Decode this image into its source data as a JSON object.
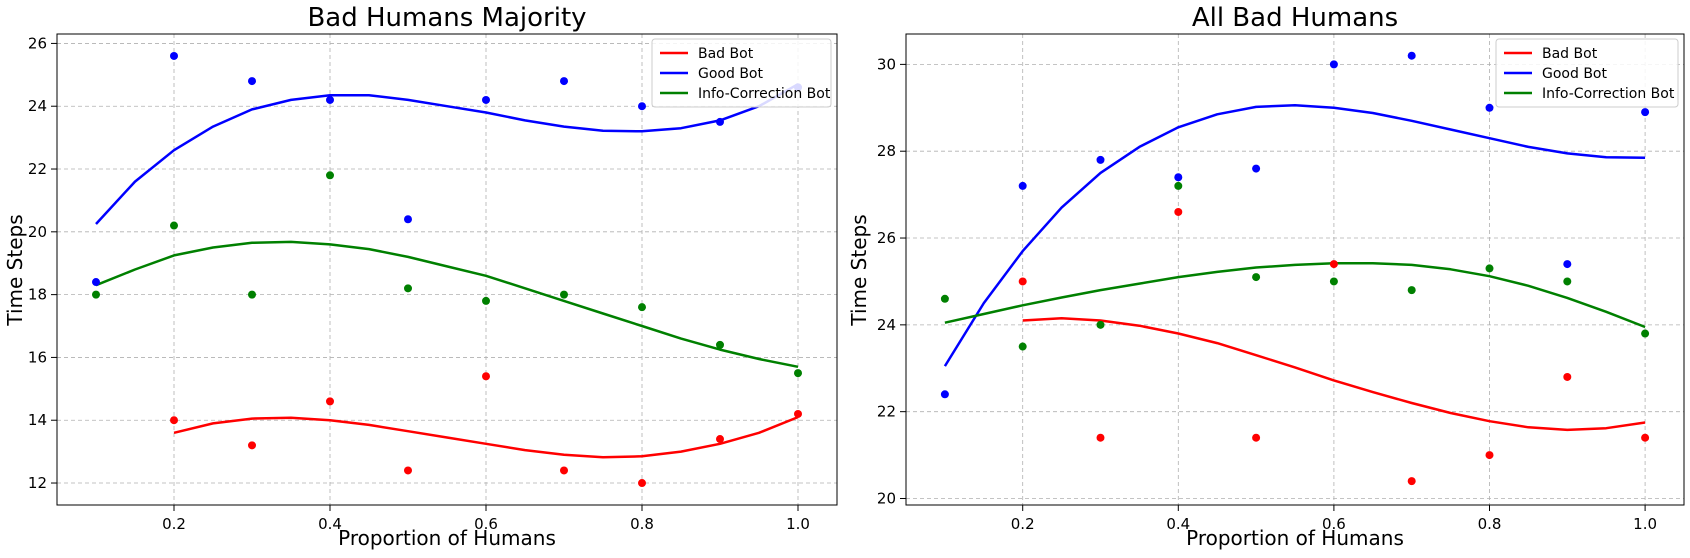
{
  "chart_data": [
    {
      "type": "scatter",
      "title": "Bad Humans Majority",
      "xlabel": "Proportion of Humans",
      "ylabel": "Time Steps",
      "xlim": [
        0.05,
        1.05
      ],
      "ylim": [
        11.3,
        26.3
      ],
      "xticks": [
        0.2,
        0.4,
        0.6,
        0.8,
        1.0
      ],
      "xtick_labels": [
        "0.2",
        "0.4",
        "0.6",
        "0.8",
        "1.0"
      ],
      "yticks": [
        12,
        14,
        16,
        18,
        20,
        22,
        24,
        26
      ],
      "ytick_labels": [
        "12",
        "14",
        "16",
        "18",
        "20",
        "22",
        "24",
        "26"
      ],
      "grid": true,
      "legend_position": "top-right",
      "series": [
        {
          "name": "Bad Bot",
          "color": "#ff0000",
          "points": [
            [
              0.2,
              14.0
            ],
            [
              0.3,
              13.2
            ],
            [
              0.4,
              14.6
            ],
            [
              0.5,
              12.4
            ],
            [
              0.6,
              15.4
            ],
            [
              0.7,
              12.4
            ],
            [
              0.8,
              12.0
            ],
            [
              0.9,
              13.4
            ],
            [
              1.0,
              14.2
            ]
          ],
          "curve": [
            [
              0.2,
              13.6
            ],
            [
              0.25,
              13.9
            ],
            [
              0.3,
              14.05
            ],
            [
              0.35,
              14.08
            ],
            [
              0.4,
              14.0
            ],
            [
              0.45,
              13.85
            ],
            [
              0.5,
              13.65
            ],
            [
              0.55,
              13.45
            ],
            [
              0.6,
              13.25
            ],
            [
              0.65,
              13.05
            ],
            [
              0.7,
              12.9
            ],
            [
              0.75,
              12.82
            ],
            [
              0.8,
              12.85
            ],
            [
              0.85,
              13.0
            ],
            [
              0.9,
              13.25
            ],
            [
              0.95,
              13.6
            ],
            [
              1.0,
              14.1
            ]
          ]
        },
        {
          "name": "Good Bot",
          "color": "#0000ff",
          "points": [
            [
              0.1,
              18.4
            ],
            [
              0.2,
              25.6
            ],
            [
              0.3,
              24.8
            ],
            [
              0.4,
              24.2
            ],
            [
              0.5,
              20.4
            ],
            [
              0.6,
              24.2
            ],
            [
              0.7,
              24.8
            ],
            [
              0.8,
              24.0
            ],
            [
              0.9,
              23.5
            ],
            [
              1.0,
              24.6
            ]
          ],
          "curve": [
            [
              0.1,
              20.25
            ],
            [
              0.15,
              21.6
            ],
            [
              0.2,
              22.6
            ],
            [
              0.25,
              23.35
            ],
            [
              0.3,
              23.9
            ],
            [
              0.35,
              24.2
            ],
            [
              0.4,
              24.35
            ],
            [
              0.45,
              24.35
            ],
            [
              0.5,
              24.2
            ],
            [
              0.55,
              24.0
            ],
            [
              0.6,
              23.8
            ],
            [
              0.65,
              23.55
            ],
            [
              0.7,
              23.35
            ],
            [
              0.75,
              23.22
            ],
            [
              0.8,
              23.2
            ],
            [
              0.85,
              23.3
            ],
            [
              0.9,
              23.55
            ],
            [
              0.95,
              24.0
            ],
            [
              1.0,
              24.7
            ]
          ]
        },
        {
          "name": "Info-Correction Bot",
          "color": "#008000",
          "points": [
            [
              0.1,
              18.0
            ],
            [
              0.2,
              20.2
            ],
            [
              0.3,
              18.0
            ],
            [
              0.4,
              21.8
            ],
            [
              0.5,
              18.2
            ],
            [
              0.6,
              17.8
            ],
            [
              0.7,
              18.0
            ],
            [
              0.8,
              17.6
            ],
            [
              0.9,
              16.4
            ],
            [
              1.0,
              15.5
            ]
          ],
          "curve": [
            [
              0.1,
              18.3
            ],
            [
              0.15,
              18.8
            ],
            [
              0.2,
              19.25
            ],
            [
              0.25,
              19.5
            ],
            [
              0.3,
              19.65
            ],
            [
              0.35,
              19.68
            ],
            [
              0.4,
              19.6
            ],
            [
              0.45,
              19.45
            ],
            [
              0.5,
              19.2
            ],
            [
              0.55,
              18.9
            ],
            [
              0.6,
              18.6
            ],
            [
              0.65,
              18.2
            ],
            [
              0.7,
              17.8
            ],
            [
              0.75,
              17.4
            ],
            [
              0.8,
              17.0
            ],
            [
              0.85,
              16.6
            ],
            [
              0.9,
              16.25
            ],
            [
              0.95,
              15.95
            ],
            [
              1.0,
              15.7
            ]
          ]
        }
      ]
    },
    {
      "type": "scatter",
      "title": "All Bad Humans",
      "xlabel": "Proportion of Humans",
      "ylabel": "Time Steps",
      "xlim": [
        0.05,
        1.05
      ],
      "ylim": [
        19.85,
        30.7
      ],
      "xticks": [
        0.2,
        0.4,
        0.6,
        0.8,
        1.0
      ],
      "xtick_labels": [
        "0.2",
        "0.4",
        "0.6",
        "0.8",
        "1.0"
      ],
      "yticks": [
        20,
        22,
        24,
        26,
        28,
        30
      ],
      "ytick_labels": [
        "20",
        "22",
        "24",
        "26",
        "28",
        "30"
      ],
      "grid": true,
      "legend_position": "top-right",
      "series": [
        {
          "name": "Bad Bot",
          "color": "#ff0000",
          "points": [
            [
              0.2,
              25.0
            ],
            [
              0.3,
              21.4
            ],
            [
              0.4,
              26.6
            ],
            [
              0.5,
              21.4
            ],
            [
              0.6,
              25.4
            ],
            [
              0.7,
              20.4
            ],
            [
              0.8,
              21.0
            ],
            [
              0.9,
              22.8
            ],
            [
              1.0,
              21.4
            ]
          ],
          "curve": [
            [
              0.2,
              24.1
            ],
            [
              0.25,
              24.15
            ],
            [
              0.3,
              24.1
            ],
            [
              0.35,
              23.98
            ],
            [
              0.4,
              23.8
            ],
            [
              0.45,
              23.58
            ],
            [
              0.5,
              23.3
            ],
            [
              0.55,
              23.02
            ],
            [
              0.6,
              22.72
            ],
            [
              0.65,
              22.45
            ],
            [
              0.7,
              22.2
            ],
            [
              0.75,
              21.97
            ],
            [
              0.8,
              21.78
            ],
            [
              0.85,
              21.64
            ],
            [
              0.9,
              21.58
            ],
            [
              0.95,
              21.62
            ],
            [
              1.0,
              21.75
            ]
          ]
        },
        {
          "name": "Good Bot",
          "color": "#0000ff",
          "points": [
            [
              0.1,
              22.4
            ],
            [
              0.2,
              27.2
            ],
            [
              0.3,
              27.8
            ],
            [
              0.4,
              27.4
            ],
            [
              0.5,
              27.6
            ],
            [
              0.6,
              30.0
            ],
            [
              0.7,
              30.2
            ],
            [
              0.8,
              29.0
            ],
            [
              0.9,
              25.4
            ],
            [
              1.0,
              28.9
            ]
          ],
          "curve": [
            [
              0.1,
              23.05
            ],
            [
              0.15,
              24.5
            ],
            [
              0.2,
              25.7
            ],
            [
              0.25,
              26.7
            ],
            [
              0.3,
              27.5
            ],
            [
              0.35,
              28.1
            ],
            [
              0.4,
              28.55
            ],
            [
              0.45,
              28.85
            ],
            [
              0.5,
              29.02
            ],
            [
              0.55,
              29.06
            ],
            [
              0.6,
              29.0
            ],
            [
              0.65,
              28.88
            ],
            [
              0.7,
              28.7
            ],
            [
              0.75,
              28.5
            ],
            [
              0.8,
              28.3
            ],
            [
              0.85,
              28.1
            ],
            [
              0.9,
              27.95
            ],
            [
              0.95,
              27.86
            ],
            [
              1.0,
              27.85
            ]
          ]
        },
        {
          "name": "Info-Correction Bot",
          "color": "#008000",
          "points": [
            [
              0.1,
              24.6
            ],
            [
              0.2,
              23.5
            ],
            [
              0.3,
              24.0
            ],
            [
              0.4,
              27.2
            ],
            [
              0.5,
              25.1
            ],
            [
              0.6,
              25.0
            ],
            [
              0.7,
              24.8
            ],
            [
              0.8,
              25.3
            ],
            [
              0.9,
              25.0
            ],
            [
              1.0,
              23.8
            ]
          ],
          "curve": [
            [
              0.1,
              24.05
            ],
            [
              0.15,
              24.25
            ],
            [
              0.2,
              24.45
            ],
            [
              0.25,
              24.63
            ],
            [
              0.3,
              24.8
            ],
            [
              0.35,
              24.95
            ],
            [
              0.4,
              25.1
            ],
            [
              0.45,
              25.22
            ],
            [
              0.5,
              25.32
            ],
            [
              0.55,
              25.38
            ],
            [
              0.6,
              25.42
            ],
            [
              0.65,
              25.42
            ],
            [
              0.7,
              25.38
            ],
            [
              0.75,
              25.28
            ],
            [
              0.8,
              25.12
            ],
            [
              0.85,
              24.9
            ],
            [
              0.9,
              24.62
            ],
            [
              0.95,
              24.3
            ],
            [
              1.0,
              23.95
            ]
          ]
        }
      ]
    }
  ]
}
